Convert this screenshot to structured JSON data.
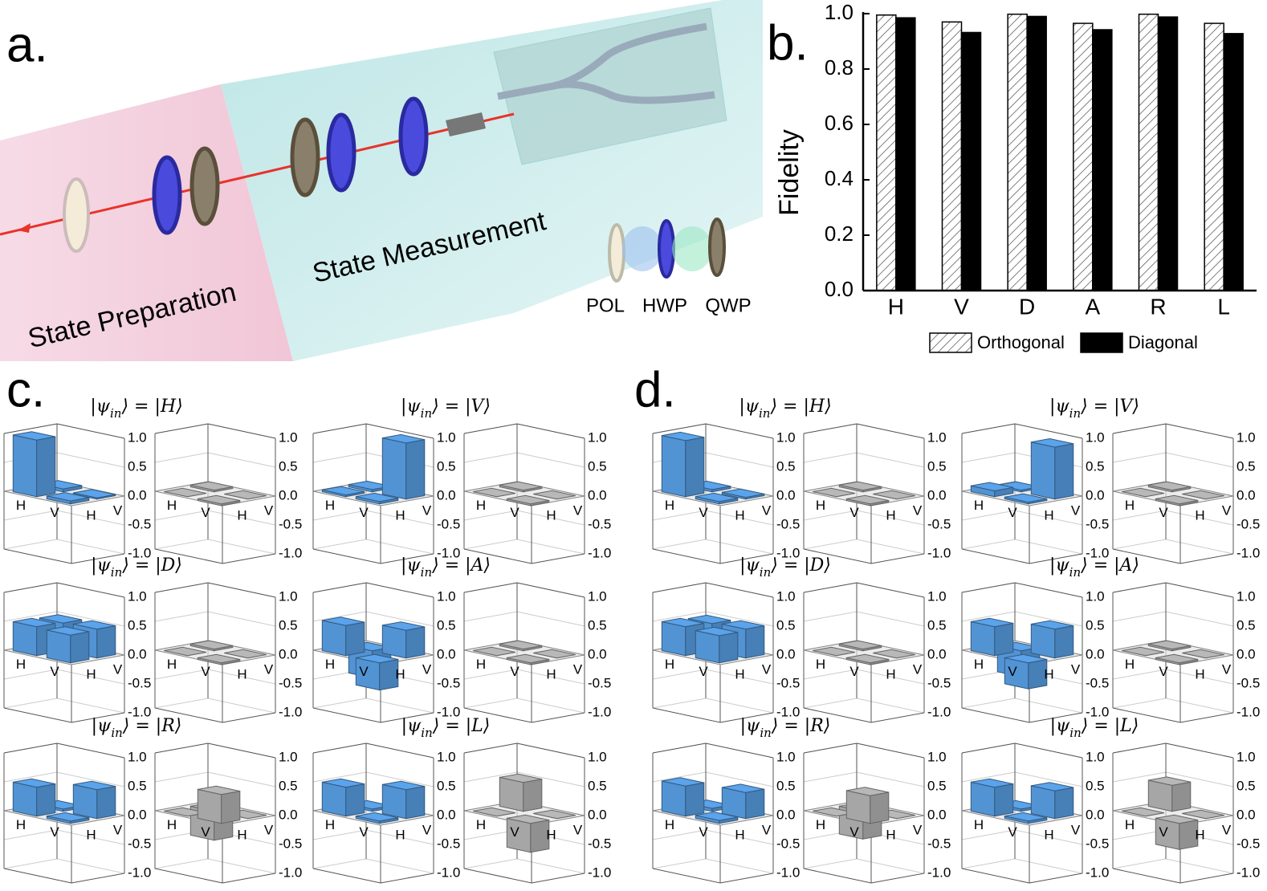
{
  "panel_a": {
    "label": "a.",
    "regions": [
      "State Preparation",
      "State Measurement"
    ],
    "components": [
      "POL",
      "HWP",
      "QWP"
    ]
  },
  "chart_data": {
    "type": "bar",
    "label": "b.",
    "y_label": "Fidelity",
    "categories": [
      "H",
      "V",
      "D",
      "A",
      "R",
      "L"
    ],
    "series": [
      {
        "name": "Orthogonal",
        "color": "#ffffff",
        "pattern": "hatch",
        "values": [
          0.995,
          0.97,
          0.998,
          0.965,
          0.998,
          0.965
        ]
      },
      {
        "name": "Diagonal",
        "color": "#000000",
        "pattern": "solid",
        "values": [
          0.985,
          0.932,
          0.99,
          0.942,
          0.988,
          0.928
        ]
      }
    ],
    "ylim": [
      0,
      1
    ],
    "yticks": [
      {
        "value": 0,
        "label": "0.0"
      },
      0.2,
      0.4,
      0.6,
      0.8,
      {
        "value": 1,
        "label": "1.0"
      }
    ]
  },
  "density_plots": {
    "zlim": [
      -1,
      1
    ],
    "zticks": [
      {
        "value": 1,
        "label": "1.0"
      },
      0.5,
      {
        "value": 0,
        "label": "0.0"
      },
      -0.5,
      {
        "value": -1,
        "label": "-1.0"
      }
    ],
    "basis": [
      "H",
      "V"
    ],
    "colors": {
      "real": "#5ba3ea",
      "imag": "#b8b8b8"
    },
    "panels": [
      {
        "label": "c.",
        "states": [
          {
            "title": [
              "|ψ",
              "in",
              "⟩ = |H⟩"
            ],
            "real": [
              [
                0.98,
                0.05
              ],
              [
                0.05,
                0.02
              ]
            ],
            "imag": [
              [
                0,
                0.03
              ],
              [
                -0.03,
                0
              ]
            ]
          },
          {
            "title": [
              "|ψ",
              "in",
              "⟩ = |V⟩"
            ],
            "real": [
              [
                0.03,
                0.04
              ],
              [
                0.04,
                0.97
              ]
            ],
            "imag": [
              [
                0,
                0.03
              ],
              [
                -0.03,
                0
              ]
            ]
          },
          {
            "title": [
              "|ψ",
              "in",
              "⟩ = |D⟩"
            ],
            "real": [
              [
                0.5,
                0.48
              ],
              [
                0.48,
                0.5
              ]
            ],
            "imag": [
              [
                0,
                0.03
              ],
              [
                -0.03,
                0
              ]
            ]
          },
          {
            "title": [
              "|ψ",
              "in",
              "⟩ = |A⟩"
            ],
            "real": [
              [
                0.52,
                -0.47
              ],
              [
                -0.47,
                0.48
              ]
            ],
            "imag": [
              [
                0,
                0.03
              ],
              [
                -0.03,
                0
              ]
            ]
          },
          {
            "title": [
              "|ψ",
              "in",
              "⟩ = |R⟩"
            ],
            "real": [
              [
                0.5,
                0.04
              ],
              [
                0.04,
                0.5
              ]
            ],
            "imag": [
              [
                0,
                -0.5
              ],
              [
                0.5,
                0
              ]
            ]
          },
          {
            "title": [
              "|ψ",
              "in",
              "⟩ = |L⟩"
            ],
            "real": [
              [
                0.5,
                0.04
              ],
              [
                0.04,
                0.5
              ]
            ],
            "imag": [
              [
                0,
                0.5
              ],
              [
                -0.5,
                0
              ]
            ]
          }
        ]
      },
      {
        "label": "d.",
        "states": [
          {
            "title": [
              "|ψ",
              "in",
              "⟩ = |H⟩"
            ],
            "real": [
              [
                0.97,
                0.04
              ],
              [
                0.04,
                0.03
              ]
            ],
            "imag": [
              [
                0,
                0.03
              ],
              [
                -0.03,
                0
              ]
            ]
          },
          {
            "title": [
              "|ψ",
              "in",
              "⟩ = |V⟩"
            ],
            "real": [
              [
                0.1,
                0.03
              ],
              [
                0.03,
                0.9
              ]
            ],
            "imag": [
              [
                0,
                0.03
              ],
              [
                -0.03,
                0
              ]
            ]
          },
          {
            "title": [
              "|ψ",
              "in",
              "⟩ = |D⟩"
            ],
            "real": [
              [
                0.5,
                0.47
              ],
              [
                0.47,
                0.5
              ]
            ],
            "imag": [
              [
                0,
                0.03
              ],
              [
                -0.03,
                0
              ]
            ]
          },
          {
            "title": [
              "|ψ",
              "in",
              "⟩ = |A⟩"
            ],
            "real": [
              [
                0.5,
                -0.45
              ],
              [
                -0.45,
                0.5
              ]
            ],
            "imag": [
              [
                0,
                0.03
              ],
              [
                -0.03,
                0
              ]
            ]
          },
          {
            "title": [
              "|ψ",
              "in",
              "⟩ = |R⟩"
            ],
            "real": [
              [
                0.52,
                0.05
              ],
              [
                0.05,
                0.45
              ]
            ],
            "imag": [
              [
                0,
                -0.48
              ],
              [
                0.48,
                0
              ]
            ]
          },
          {
            "title": [
              "|ψ",
              "in",
              "⟩ = |L⟩"
            ],
            "real": [
              [
                0.5,
                0.04
              ],
              [
                0.04,
                0.48
              ]
            ],
            "imag": [
              [
                0,
                0.45
              ],
              [
                -0.45,
                0
              ]
            ]
          }
        ]
      }
    ]
  }
}
